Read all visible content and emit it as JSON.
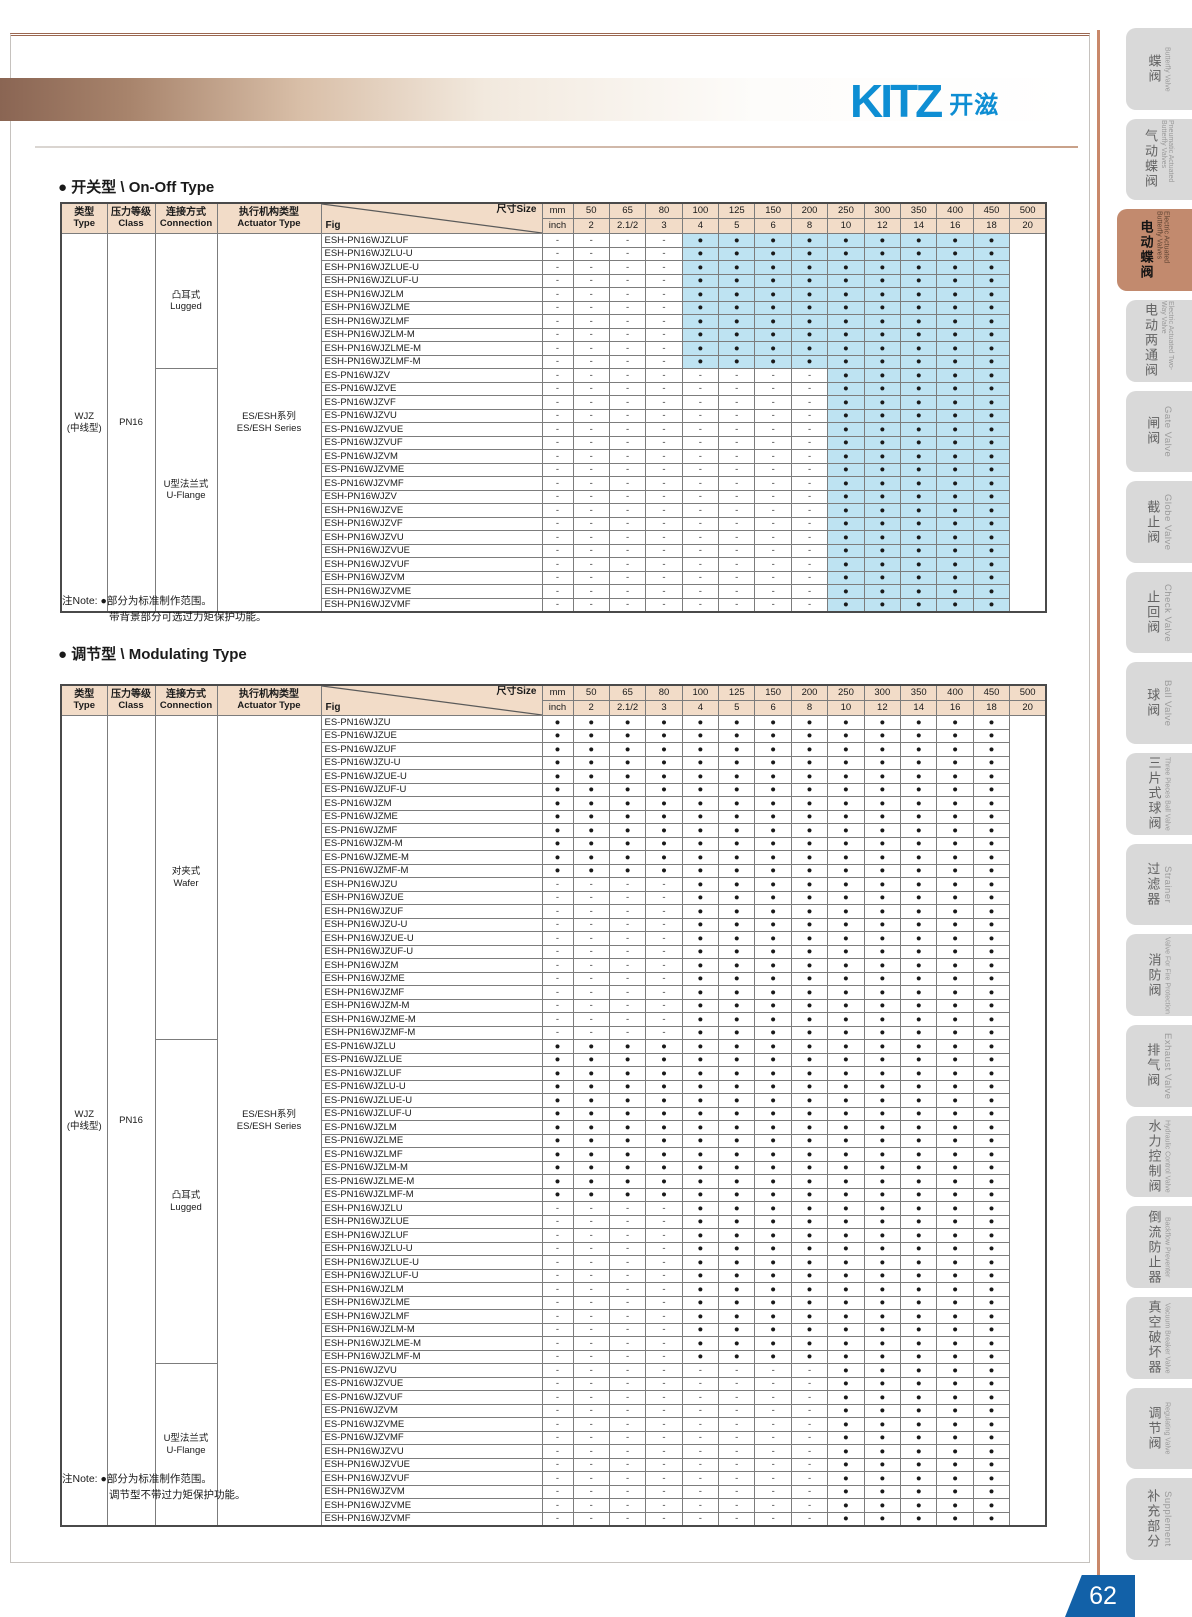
{
  "page": {
    "number": "62"
  },
  "logo": {
    "brand": "KITZ",
    "brand_cn": "开滋"
  },
  "colors": {
    "highlight": "#bee3f2",
    "header_bg": "#f2dcc8",
    "tab_bg": "#d9d9d9",
    "tab_active_bg": "#c28a6e",
    "logo_blue": "#0e8ed3",
    "pagebox_blue": "#1261a8",
    "sidebar_line": "#c9886a"
  },
  "cell_legend": {
    "-": "not available",
    "d": "standard (dot)",
    "b": "dot with blue background = optional over-torque protection"
  },
  "patterns": {
    "A": "----bbbbbbbbb",
    "B": "--------bbbbb",
    "C": "ddddddddddddd",
    "D": "----ddddddddd",
    "E": "--------ddddd"
  },
  "tables": [
    {
      "title": "● 开关型 \\ On-Off Type",
      "header": {
        "type_cn": "类型",
        "type_en": "Type",
        "class_cn": "压力等级",
        "class_en": "Class",
        "conn_cn": "连接方式",
        "conn_en": "Connection",
        "act_cn": "执行机构类型",
        "act_en": "Actuator Type",
        "fig_label": "Fig",
        "size_label": "尺寸Size",
        "mm_label": "mm",
        "inch_label": "inch"
      },
      "sizes_mm": [
        "50",
        "65",
        "80",
        "100",
        "125",
        "150",
        "200",
        "250",
        "300",
        "350",
        "400",
        "450",
        "500"
      ],
      "sizes_inch": [
        "2",
        "2.1/2",
        "3",
        "4",
        "5",
        "6",
        "8",
        "10",
        "12",
        "14",
        "16",
        "18",
        "20"
      ],
      "type_line1": "WJZ",
      "type_line2": "(中线型)",
      "class": "PN16",
      "actuator_cn": "ES/ESH系列",
      "actuator_en": "ES/ESH Series",
      "connection_groups": [
        {
          "cn": "凸耳式",
          "en": "Lugged",
          "rows": 10
        },
        {
          "cn": "U型法兰式",
          "en": "U-Flange",
          "rows": 18
        }
      ],
      "rows": [
        {
          "f": "ESH-PN16WJZLUF",
          "c": "A"
        },
        {
          "f": "ESH-PN16WJZLU-U",
          "c": "A"
        },
        {
          "f": "ESH-PN16WJZLUE-U",
          "c": "A"
        },
        {
          "f": "ESH-PN16WJZLUF-U",
          "c": "A"
        },
        {
          "f": "ESH-PN16WJZLM",
          "c": "A"
        },
        {
          "f": "ESH-PN16WJZLME",
          "c": "A"
        },
        {
          "f": "ESH-PN16WJZLMF",
          "c": "A"
        },
        {
          "f": "ESH-PN16WJZLM-M",
          "c": "A"
        },
        {
          "f": "ESH-PN16WJZLME-M",
          "c": "A"
        },
        {
          "f": "ESH-PN16WJZLMF-M",
          "c": "A"
        },
        {
          "f": "ES-PN16WJZV",
          "c": "B"
        },
        {
          "f": "ES-PN16WJZVE",
          "c": "B"
        },
        {
          "f": "ES-PN16WJZVF",
          "c": "B"
        },
        {
          "f": "ES-PN16WJZVU",
          "c": "B"
        },
        {
          "f": "ES-PN16WJZVUE",
          "c": "B"
        },
        {
          "f": "ES-PN16WJZVUF",
          "c": "B"
        },
        {
          "f": "ES-PN16WJZVM",
          "c": "B"
        },
        {
          "f": "ES-PN16WJZVME",
          "c": "B"
        },
        {
          "f": "ES-PN16WJZVMF",
          "c": "B"
        },
        {
          "f": "ESH-PN16WJZV",
          "c": "B"
        },
        {
          "f": "ESH-PN16WJZVE",
          "c": "B"
        },
        {
          "f": "ESH-PN16WJZVF",
          "c": "B"
        },
        {
          "f": "ESH-PN16WJZVU",
          "c": "B"
        },
        {
          "f": "ESH-PN16WJZVUE",
          "c": "B"
        },
        {
          "f": "ESH-PN16WJZVUF",
          "c": "B"
        },
        {
          "f": "ESH-PN16WJZVM",
          "c": "B"
        },
        {
          "f": "ESH-PN16WJZVME",
          "c": "B"
        },
        {
          "f": "ESH-PN16WJZVMF",
          "c": "B"
        }
      ],
      "notes": [
        "注Note: ●部分为标准制作范围。",
        "带背景部分可选过力矩保护功能。"
      ]
    },
    {
      "title": "● 调节型 \\ Modulating Type",
      "header": {
        "type_cn": "类型",
        "type_en": "Type",
        "class_cn": "压力等级",
        "class_en": "Class",
        "conn_cn": "连接方式",
        "conn_en": "Connection",
        "act_cn": "执行机构类型",
        "act_en": "Actuator Type",
        "fig_label": "Fig",
        "size_label": "尺寸Size",
        "mm_label": "mm",
        "inch_label": "inch"
      },
      "sizes_mm": [
        "50",
        "65",
        "80",
        "100",
        "125",
        "150",
        "200",
        "250",
        "300",
        "350",
        "400",
        "450",
        "500"
      ],
      "sizes_inch": [
        "2",
        "2.1/2",
        "3",
        "4",
        "5",
        "6",
        "8",
        "10",
        "12",
        "14",
        "16",
        "18",
        "20"
      ],
      "type_line1": "WJZ",
      "type_line2": "(中线型)",
      "class": "PN16",
      "actuator_cn": "ES/ESH系列",
      "actuator_en": "ES/ESH Series",
      "connection_groups": [
        {
          "cn": "对夹式",
          "en": "Wafer",
          "rows": 24
        },
        {
          "cn": "凸耳式",
          "en": "Lugged",
          "rows": 24
        },
        {
          "cn": "U型法兰式",
          "en": "U-Flange",
          "rows": 12
        }
      ],
      "rows": [
        {
          "f": "ES-PN16WJZU",
          "c": "C"
        },
        {
          "f": "ES-PN16WJZUE",
          "c": "C"
        },
        {
          "f": "ES-PN16WJZUF",
          "c": "C"
        },
        {
          "f": "ES-PN16WJZU-U",
          "c": "C"
        },
        {
          "f": "ES-PN16WJZUE-U",
          "c": "C"
        },
        {
          "f": "ES-PN16WJZUF-U",
          "c": "C"
        },
        {
          "f": "ES-PN16WJZM",
          "c": "C"
        },
        {
          "f": "ES-PN16WJZME",
          "c": "C"
        },
        {
          "f": "ES-PN16WJZMF",
          "c": "C"
        },
        {
          "f": "ES-PN16WJZM-M",
          "c": "C"
        },
        {
          "f": "ES-PN16WJZME-M",
          "c": "C"
        },
        {
          "f": "ES-PN16WJZMF-M",
          "c": "C"
        },
        {
          "f": "ESH-PN16WJZU",
          "c": "D"
        },
        {
          "f": "ESH-PN16WJZUE",
          "c": "D"
        },
        {
          "f": "ESH-PN16WJZUF",
          "c": "D"
        },
        {
          "f": "ESH-PN16WJZU-U",
          "c": "D"
        },
        {
          "f": "ESH-PN16WJZUE-U",
          "c": "D"
        },
        {
          "f": "ESH-PN16WJZUF-U",
          "c": "D"
        },
        {
          "f": "ESH-PN16WJZM",
          "c": "D"
        },
        {
          "f": "ESH-PN16WJZME",
          "c": "D"
        },
        {
          "f": "ESH-PN16WJZMF",
          "c": "D"
        },
        {
          "f": "ESH-PN16WJZM-M",
          "c": "D"
        },
        {
          "f": "ESH-PN16WJZME-M",
          "c": "D"
        },
        {
          "f": "ESH-PN16WJZMF-M",
          "c": "D"
        },
        {
          "f": "ES-PN16WJZLU",
          "c": "C"
        },
        {
          "f": "ES-PN16WJZLUE",
          "c": "C"
        },
        {
          "f": "ES-PN16WJZLUF",
          "c": "C"
        },
        {
          "f": "ES-PN16WJZLU-U",
          "c": "C"
        },
        {
          "f": "ES-PN16WJZLUE-U",
          "c": "C"
        },
        {
          "f": "ES-PN16WJZLUF-U",
          "c": "C"
        },
        {
          "f": "ES-PN16WJZLM",
          "c": "C"
        },
        {
          "f": "ES-PN16WJZLME",
          "c": "C"
        },
        {
          "f": "ES-PN16WJZLMF",
          "c": "C"
        },
        {
          "f": "ES-PN16WJZLM-M",
          "c": "C"
        },
        {
          "f": "ES-PN16WJZLME-M",
          "c": "C"
        },
        {
          "f": "ES-PN16WJZLMF-M",
          "c": "C"
        },
        {
          "f": "ESH-PN16WJZLU",
          "c": "D"
        },
        {
          "f": "ESH-PN16WJZLUE",
          "c": "D"
        },
        {
          "f": "ESH-PN16WJZLUF",
          "c": "D"
        },
        {
          "f": "ESH-PN16WJZLU-U",
          "c": "D"
        },
        {
          "f": "ESH-PN16WJZLUE-U",
          "c": "D"
        },
        {
          "f": "ESH-PN16WJZLUF-U",
          "c": "D"
        },
        {
          "f": "ESH-PN16WJZLM",
          "c": "D"
        },
        {
          "f": "ESH-PN16WJZLME",
          "c": "D"
        },
        {
          "f": "ESH-PN16WJZLMF",
          "c": "D"
        },
        {
          "f": "ESH-PN16WJZLM-M",
          "c": "D"
        },
        {
          "f": "ESH-PN16WJZLME-M",
          "c": "D"
        },
        {
          "f": "ESH-PN16WJZLMF-M",
          "c": "D"
        },
        {
          "f": "ES-PN16WJZVU",
          "c": "E"
        },
        {
          "f": "ES-PN16WJZVUE",
          "c": "E"
        },
        {
          "f": "ES-PN16WJZVUF",
          "c": "E"
        },
        {
          "f": "ES-PN16WJZVM",
          "c": "E"
        },
        {
          "f": "ES-PN16WJZVME",
          "c": "E"
        },
        {
          "f": "ES-PN16WJZVMF",
          "c": "E"
        },
        {
          "f": "ESH-PN16WJZVU",
          "c": "E"
        },
        {
          "f": "ESH-PN16WJZVUE",
          "c": "E"
        },
        {
          "f": "ESH-PN16WJZVUF",
          "c": "E"
        },
        {
          "f": "ESH-PN16WJZVM",
          "c": "E"
        },
        {
          "f": "ESH-PN16WJZVME",
          "c": "E"
        },
        {
          "f": "ESH-PN16WJZVMF",
          "c": "E"
        }
      ],
      "notes": [
        "注Note: ●部分为标准制作范围。",
        "调节型不带过力矩保护功能。"
      ]
    }
  ],
  "sidebar": {
    "tabs": [
      {
        "cn": "蝶阀",
        "en": "Butterfly Valve",
        "active": false
      },
      {
        "cn": "气动蝶阀",
        "en": "Pneumatic Actuated Butterfly Valves",
        "active": false
      },
      {
        "cn": "电动蝶阀",
        "en": "Electric Actuated Butterfly Valves",
        "active": true
      },
      {
        "cn": "电动两通阀",
        "en": "Electric Actuated Two-Way Valve",
        "active": false
      },
      {
        "cn": "闸阀",
        "en": "Gate Valve",
        "active": false
      },
      {
        "cn": "截止阀",
        "en": "Globe Valve",
        "active": false
      },
      {
        "cn": "止回阀",
        "en": "Check Valve",
        "active": false
      },
      {
        "cn": "球阀",
        "en": "Ball Valve",
        "active": false
      },
      {
        "cn": "三片式球阀",
        "en": "Three Pieces Ball Valve",
        "active": false
      },
      {
        "cn": "过滤器",
        "en": "Strainer",
        "active": false
      },
      {
        "cn": "消防阀",
        "en": "Valve For Fire Protection",
        "active": false
      },
      {
        "cn": "排气阀",
        "en": "Exhaust Valve",
        "active": false
      },
      {
        "cn": "水力控制阀",
        "en": "Hydraulic Control Valve",
        "active": false
      },
      {
        "cn": "倒流防止器",
        "en": "Backflow Preventer",
        "active": false
      },
      {
        "cn": "真空破坏器",
        "en": "Vacuum Breaker Valve",
        "active": false
      },
      {
        "cn": "调节阀",
        "en": "Regulating Valve",
        "active": false
      },
      {
        "cn": "补充部分",
        "en": "Supplement",
        "active": false
      }
    ]
  }
}
